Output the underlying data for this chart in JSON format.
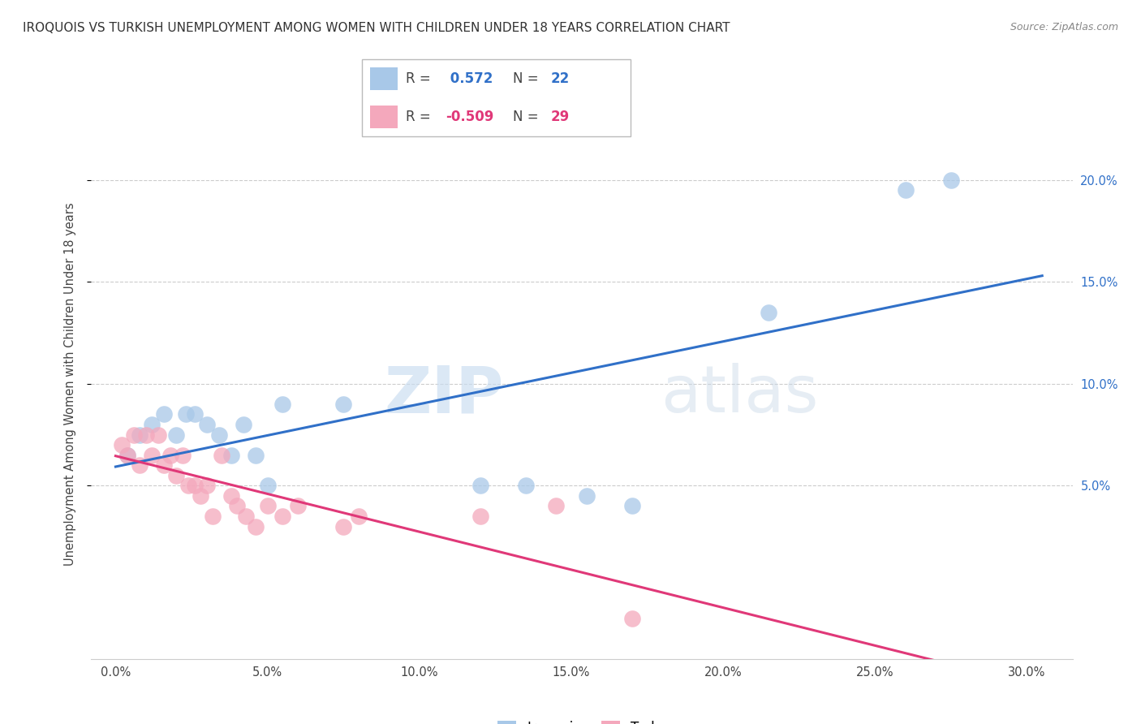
{
  "title": "IROQUOIS VS TURKISH UNEMPLOYMENT AMONG WOMEN WITH CHILDREN UNDER 18 YEARS CORRELATION CHART",
  "source": "Source: ZipAtlas.com",
  "ylabel": "Unemployment Among Women with Children Under 18 years",
  "xlabel_vals": [
    0.0,
    5.0,
    10.0,
    15.0,
    20.0,
    25.0,
    30.0
  ],
  "ylabel_vals": [
    5.0,
    10.0,
    15.0,
    20.0
  ],
  "xlim": [
    -0.8,
    31.5
  ],
  "ylim": [
    -3.5,
    23.5
  ],
  "iroquois_R": 0.572,
  "iroquois_N": 22,
  "turks_R": -0.509,
  "turks_N": 29,
  "iroquois_color": "#a8c8e8",
  "turks_color": "#f4a8bc",
  "iroquois_line_color": "#3070c8",
  "turks_line_color": "#e03878",
  "watermark_zip": "ZIP",
  "watermark_atlas": "atlas",
  "iroquois_x": [
    0.4,
    0.8,
    1.2,
    1.6,
    2.0,
    2.3,
    2.6,
    3.0,
    3.4,
    3.8,
    4.2,
    4.6,
    5.0,
    5.5,
    7.5,
    12.0,
    13.5,
    15.5,
    17.0,
    21.5,
    26.0,
    27.5
  ],
  "iroquois_y": [
    6.5,
    7.5,
    8.0,
    8.5,
    7.5,
    8.5,
    8.5,
    8.0,
    7.5,
    6.5,
    8.0,
    6.5,
    5.0,
    9.0,
    9.0,
    5.0,
    5.0,
    4.5,
    4.0,
    13.5,
    19.5,
    20.0
  ],
  "turks_x": [
    0.2,
    0.4,
    0.6,
    0.8,
    1.0,
    1.2,
    1.4,
    1.6,
    1.8,
    2.0,
    2.2,
    2.4,
    2.6,
    2.8,
    3.0,
    3.2,
    3.5,
    3.8,
    4.0,
    4.3,
    4.6,
    5.0,
    5.5,
    6.0,
    7.5,
    8.0,
    12.0,
    14.5,
    17.0
  ],
  "turks_y": [
    7.0,
    6.5,
    7.5,
    6.0,
    7.5,
    6.5,
    7.5,
    6.0,
    6.5,
    5.5,
    6.5,
    5.0,
    5.0,
    4.5,
    5.0,
    3.5,
    6.5,
    4.5,
    4.0,
    3.5,
    3.0,
    4.0,
    3.5,
    4.0,
    3.0,
    3.5,
    3.5,
    4.0,
    -1.5
  ]
}
